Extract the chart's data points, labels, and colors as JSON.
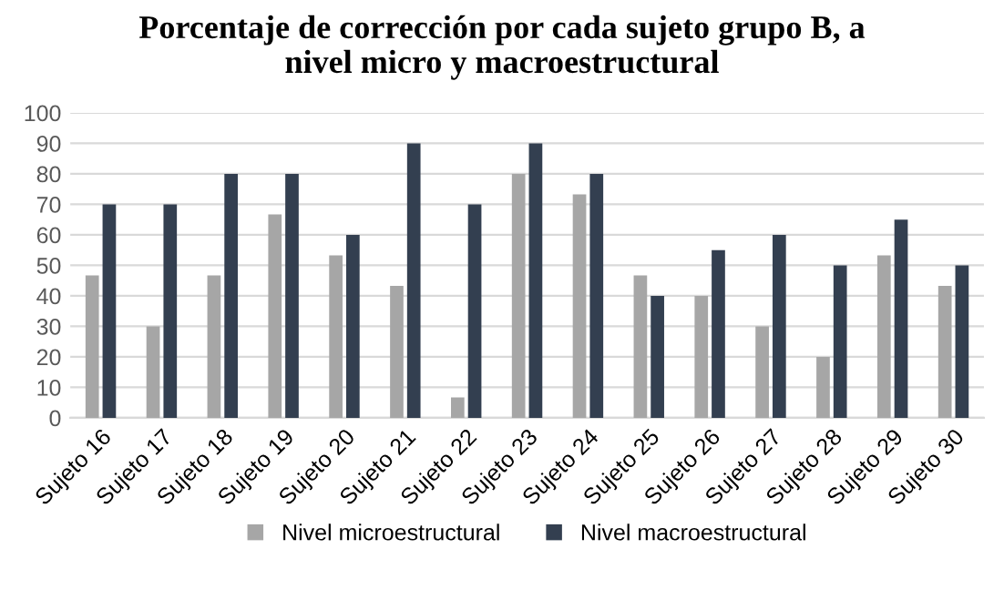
{
  "chart_data": {
    "type": "bar",
    "title": "Porcentaje de corrección por cada sujeto grupo B, a nivel micro y macroestructural",
    "categories": [
      "Sujeto 16",
      "Sujeto 17",
      "Sujeto 18",
      "Sujeto 19",
      "Sujeto 20",
      "Sujeto 21",
      "Sujeto 22",
      "Sujeto 23",
      "Sujeto 24",
      "Sujeto 25",
      "Sujeto 26",
      "Sujeto 27",
      "Sujeto 28",
      "Sujeto 29",
      "Sujeto 30"
    ],
    "series": [
      {
        "name": "Nivel microestructural",
        "color": "#a6a6a6",
        "values": [
          46.7,
          30,
          46.7,
          66.7,
          53.3,
          43.3,
          6.7,
          80,
          73.3,
          46.7,
          40,
          30,
          20,
          53.3,
          43.3
        ]
      },
      {
        "name": "Nivel macroestructural",
        "color": "#333f50",
        "values": [
          70,
          70,
          80,
          80,
          60,
          90,
          70,
          90,
          80,
          40,
          55,
          60,
          50,
          65,
          50
        ]
      }
    ],
    "ylim": [
      0,
      100
    ],
    "yticks": [
      0,
      10,
      20,
      30,
      40,
      50,
      60,
      70,
      80,
      90,
      100
    ],
    "grid": "y",
    "legend": "bottom"
  }
}
